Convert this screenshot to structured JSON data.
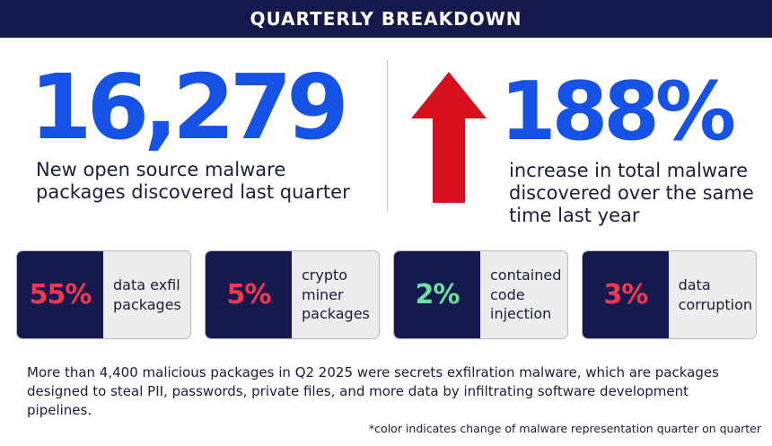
{
  "header": {
    "title": "QUARTERLY BREAKDOWN"
  },
  "stat_left": {
    "value": "16,279",
    "description": "New open source malware packages discovered last quarter"
  },
  "stat_right": {
    "value": "188%",
    "description": "increase in total malware discovered over the same time last year",
    "arrow_icon": "up-arrow-icon"
  },
  "cards": [
    {
      "percent": "55%",
      "label": "data exfil\npackages",
      "color": "#f2384e"
    },
    {
      "percent": "5%",
      "label": "crypto\nminer\npackages",
      "color": "#f2384e"
    },
    {
      "percent": "2%",
      "label": "contained\ncode\ninjection",
      "color": "#6fe0a3"
    },
    {
      "percent": "3%",
      "label": "data\ncorruption",
      "color": "#f2384e"
    }
  ],
  "body_text": "More than 4,400 malicious packages in Q2 2025 were secrets exfilration malware, which are packages designed to steal PII, passwords, private files, and more data by infiltrating software development pipelines.",
  "footnote": "*color indicates change of malware representation quarter on quarter",
  "colors": {
    "header_bg": "#15194d",
    "accent_blue": "#1652e6",
    "arrow_red": "#d6101e",
    "increase_red": "#f2384e",
    "decrease_green": "#6fe0a3"
  }
}
